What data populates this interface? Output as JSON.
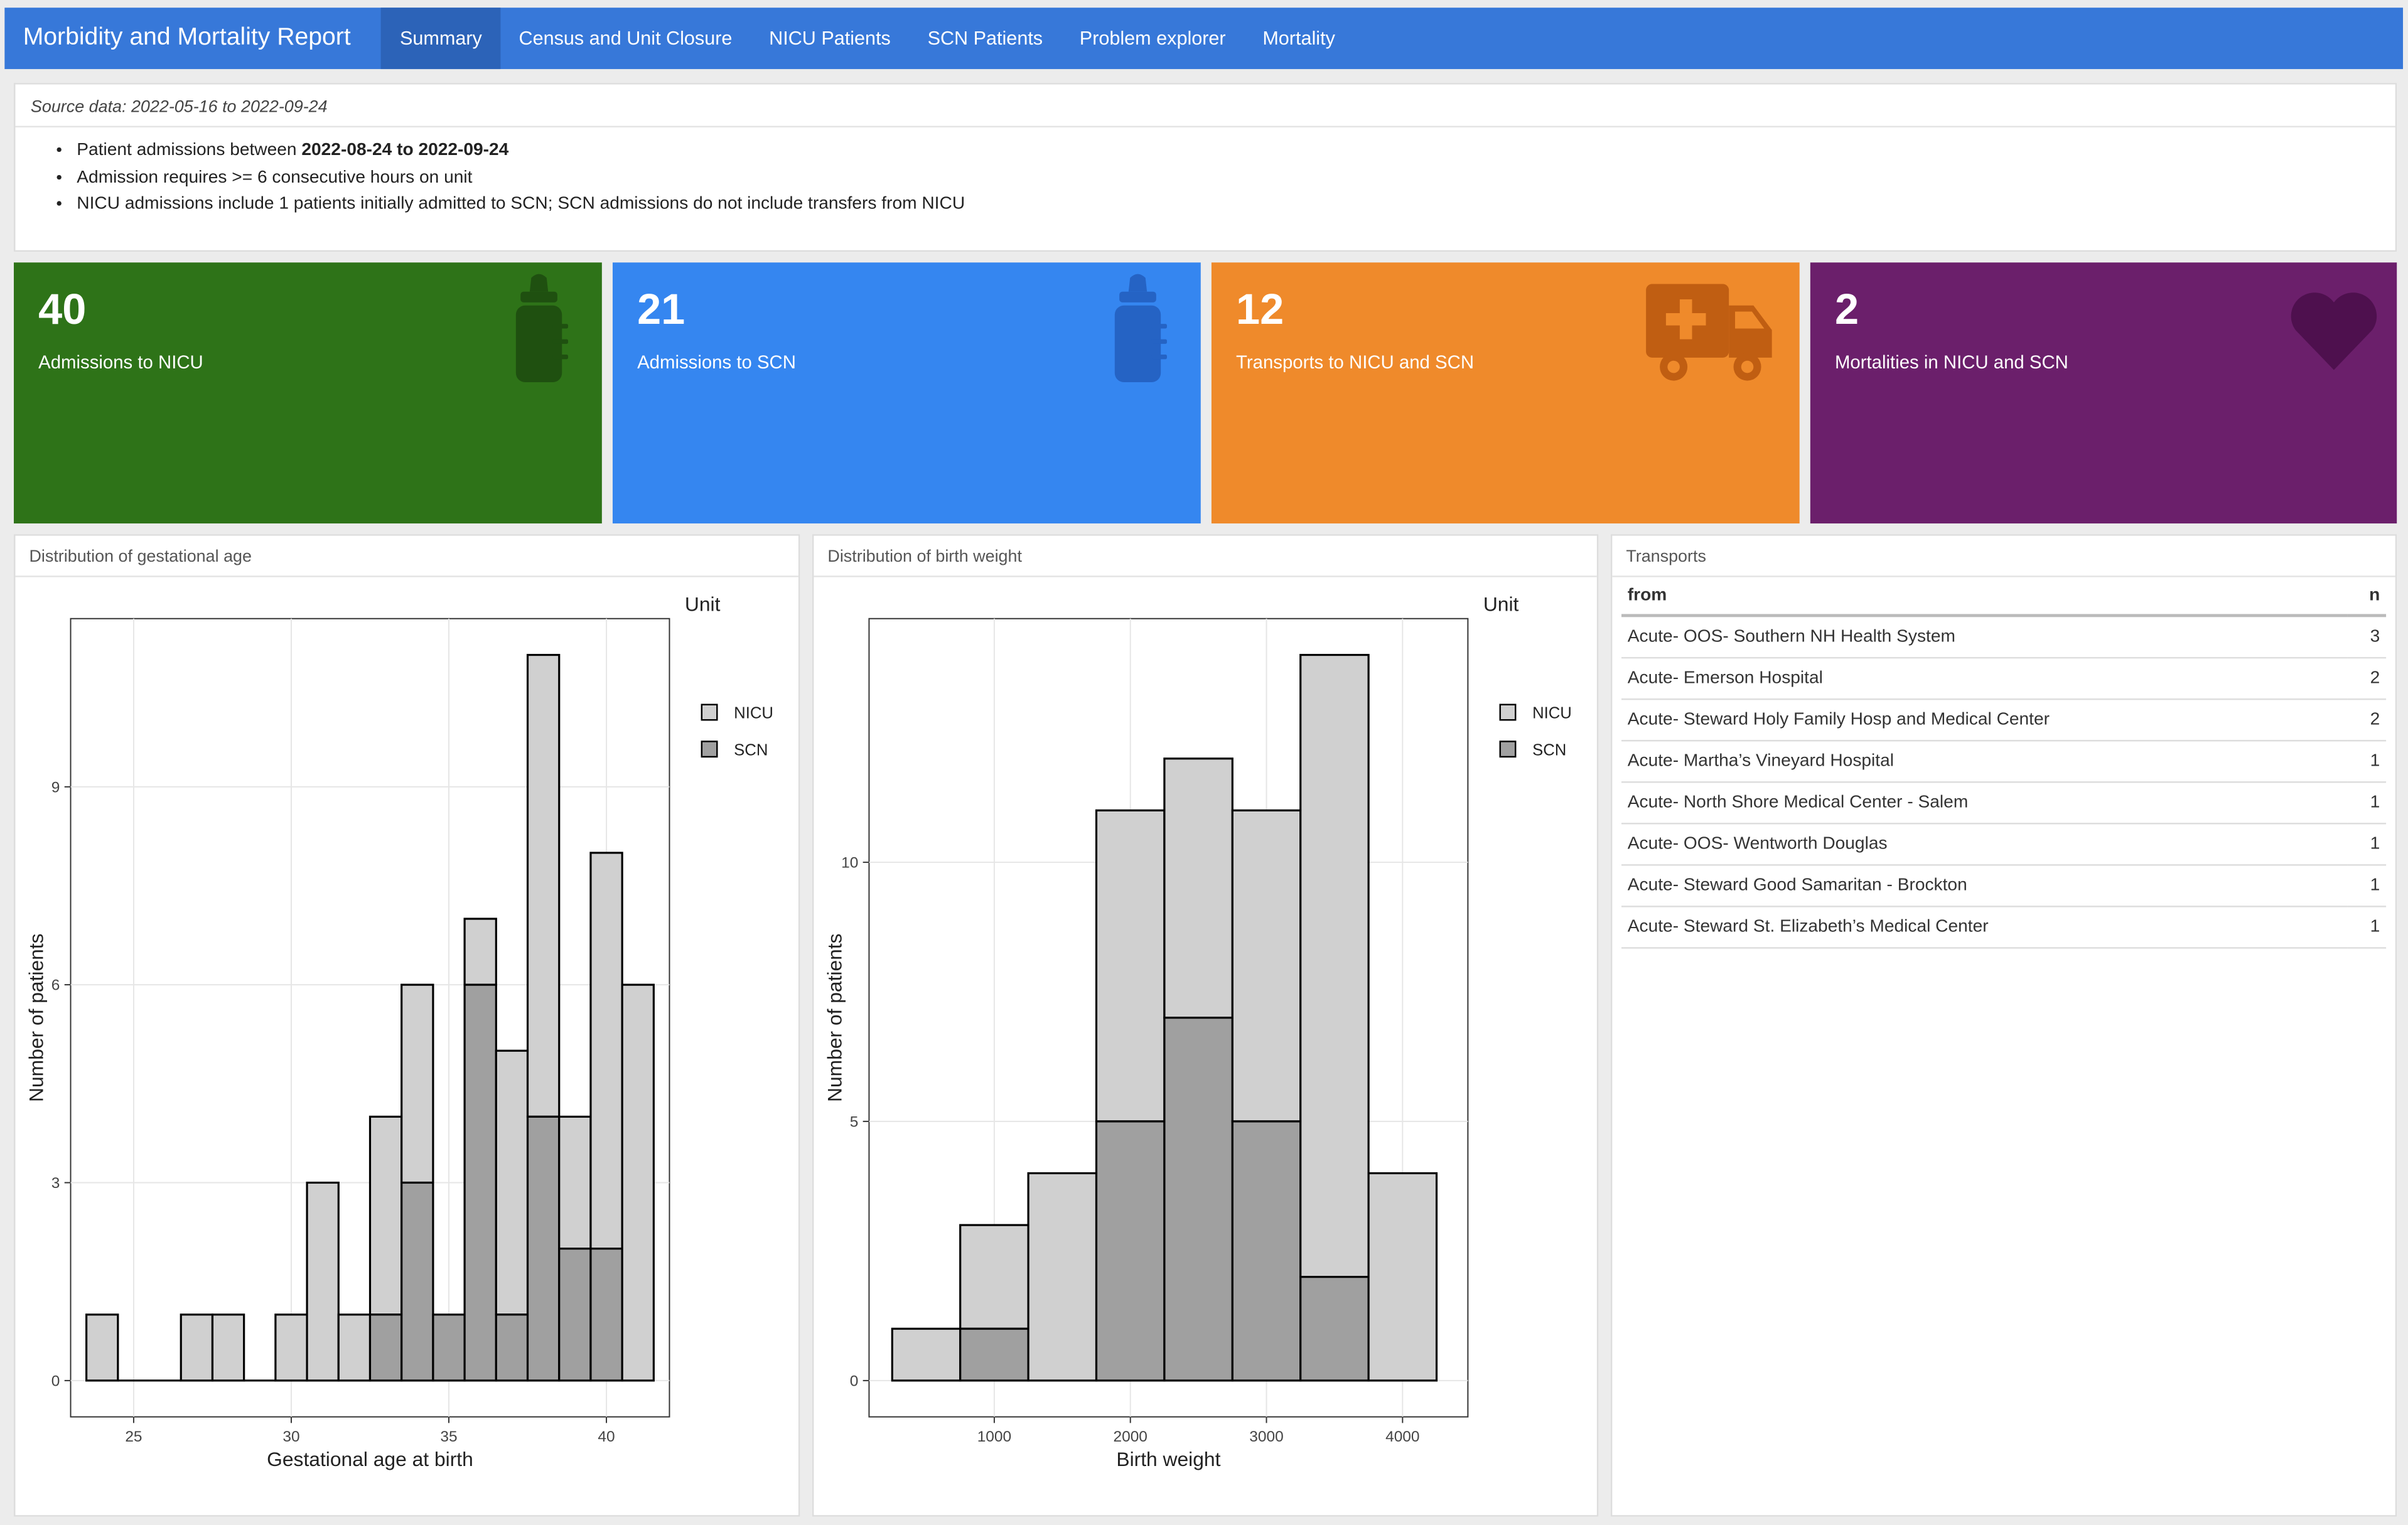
{
  "app": {
    "title": "Morbidity and Mortality Report",
    "tabs": [
      {
        "label": "Summary",
        "active": true
      },
      {
        "label": "Census and Unit Closure",
        "active": false
      },
      {
        "label": "NICU Patients",
        "active": false
      },
      {
        "label": "SCN Patients",
        "active": false
      },
      {
        "label": "Problem explorer",
        "active": false
      },
      {
        "label": "Mortality",
        "active": false
      }
    ]
  },
  "info": {
    "source_text": "Source data: 2022-05-16 to 2022-09-24",
    "bullet1_prefix": "Patient admissions between ",
    "bullet1_bold": "2022-08-24 to 2022-09-24",
    "bullet2": "Admission requires >= 6 consecutive hours on unit",
    "bullet3": "NICU admissions include 1 patients initially admitted to SCN; SCN admissions do not include transfers from NICU"
  },
  "value_boxes": [
    {
      "value": "40",
      "subtitle": "Admissions to NICU",
      "color": "#2e7318",
      "icon": "baby-bottle-icon"
    },
    {
      "value": "21",
      "subtitle": "Admissions to SCN",
      "color": "#3586f0",
      "icon": "baby-bottle-icon"
    },
    {
      "value": "12",
      "subtitle": "Transports to NICU and SCN",
      "color": "#ef8a2b",
      "icon": "ambulance-icon"
    },
    {
      "value": "2",
      "subtitle": "Mortalities in NICU and SCN",
      "color": "#6b1f6b",
      "icon": "heart-icon"
    }
  ],
  "transports": {
    "title": "Transports",
    "headers": {
      "from": "from",
      "n": "n"
    },
    "rows": [
      {
        "from": "Acute- OOS- Southern NH Health System",
        "n": "3"
      },
      {
        "from": "Acute- Emerson Hospital",
        "n": "2"
      },
      {
        "from": "Acute- Steward Holy Family Hosp and Medical Center",
        "n": "2"
      },
      {
        "from": "Acute- Martha’s Vineyard Hospital",
        "n": "1"
      },
      {
        "from": "Acute- North Shore Medical Center - Salem",
        "n": "1"
      },
      {
        "from": "Acute- OOS- Wentworth Douglas",
        "n": "1"
      },
      {
        "from": "Acute- Steward Good Samaritan - Brockton",
        "n": "1"
      },
      {
        "from": "Acute- Steward St. Elizabeth’s Medical Center",
        "n": "1"
      }
    ]
  },
  "chart_data": [
    {
      "panel_title": "Distribution of gestational age",
      "type": "bar",
      "stacked": true,
      "xlabel": "Gestational age at birth",
      "ylabel": "Number of patients",
      "legend_title": "Unit",
      "legend_position": "right",
      "xlim": [
        23,
        42
      ],
      "ylim": [
        -0.55,
        11.55
      ],
      "x_ticks": [
        25,
        30,
        35,
        40
      ],
      "y_ticks": [
        0,
        3,
        6,
        9
      ],
      "bin_width": 1,
      "bin_centers": [
        24,
        25,
        26,
        27,
        28,
        29,
        30,
        31,
        32,
        33,
        34,
        35,
        36,
        37,
        38,
        39,
        40,
        41
      ],
      "series": [
        {
          "name": "NICU",
          "color": "#d0d0d0",
          "values": [
            1,
            0,
            0,
            1,
            1,
            0,
            1,
            3,
            1,
            3,
            3,
            0,
            1,
            4,
            7,
            2,
            6,
            6
          ]
        },
        {
          "name": "SCN",
          "color": "#a0a0a0",
          "values": [
            0,
            0,
            0,
            0,
            0,
            0,
            0,
            0,
            0,
            1,
            3,
            1,
            6,
            1,
            4,
            2,
            2,
            0
          ]
        }
      ]
    },
    {
      "panel_title": "Distribution of birth weight",
      "type": "bar",
      "stacked": true,
      "xlabel": "Birth weight",
      "ylabel": "Number of patients",
      "legend_title": "Unit",
      "legend_position": "right",
      "xlim": [
        80,
        4480
      ],
      "ylim": [
        -0.7,
        14.7
      ],
      "x_ticks": [
        1000,
        2000,
        3000,
        4000
      ],
      "y_ticks": [
        0,
        5,
        10
      ],
      "bin_width": 500,
      "bin_centers": [
        500,
        1000,
        1500,
        2000,
        2500,
        3000,
        3500,
        4000
      ],
      "series": [
        {
          "name": "NICU",
          "color": "#d0d0d0",
          "values": [
            1,
            2,
            4,
            6,
            5,
            6,
            12,
            4
          ]
        },
        {
          "name": "SCN",
          "color": "#a0a0a0",
          "values": [
            0,
            1,
            0,
            5,
            7,
            5,
            2,
            0
          ]
        }
      ]
    }
  ]
}
